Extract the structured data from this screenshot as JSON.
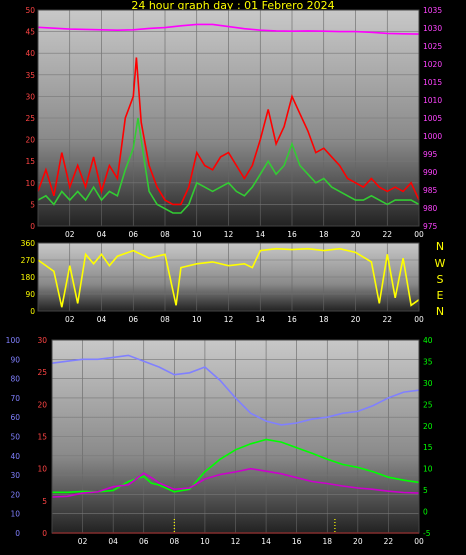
{
  "title": "24 hour graph day : 01 Febrero 2024",
  "compass": [
    "N",
    "W",
    "S",
    "E",
    "N"
  ],
  "chart_data": [
    {
      "type": "line",
      "x_ticks": [
        "02",
        "04",
        "06",
        "08",
        "10",
        "12",
        "14",
        "16",
        "18",
        "20",
        "22",
        "00"
      ],
      "y_left": {
        "range": [
          0,
          50
        ],
        "ticks": [
          0,
          5,
          10,
          15,
          20,
          25,
          30,
          35,
          40,
          45,
          50
        ]
      },
      "y_right": {
        "range": [
          975,
          1035
        ],
        "ticks": [
          975,
          980,
          985,
          990,
          995,
          1000,
          1005,
          1010,
          1015,
          1020,
          1025,
          1030,
          1035
        ]
      },
      "grid": true,
      "series": [
        {
          "color": "#ff00ff",
          "axis": "right",
          "points": [
            [
              0,
              1030.2
            ],
            [
              2,
              1029.7
            ],
            [
              4,
              1029.5
            ],
            [
              5,
              1029.4
            ],
            [
              6,
              1029.5
            ],
            [
              7,
              1029.9
            ],
            [
              8,
              1030.1
            ],
            [
              9,
              1030.6
            ],
            [
              10,
              1031.0
            ],
            [
              11,
              1031.0
            ],
            [
              12,
              1030.4
            ],
            [
              13,
              1029.8
            ],
            [
              14,
              1029.4
            ],
            [
              15,
              1029.2
            ],
            [
              16,
              1029.1
            ],
            [
              17,
              1029.2
            ],
            [
              18,
              1029.1
            ],
            [
              19,
              1029.0
            ],
            [
              20,
              1029.0
            ],
            [
              21,
              1028.8
            ],
            [
              22,
              1028.5
            ],
            [
              23,
              1028.4
            ],
            [
              24,
              1028.3
            ]
          ]
        },
        {
          "color": "#ff0000",
          "axis": "left",
          "points": [
            [
              0,
              8
            ],
            [
              0.5,
              13
            ],
            [
              1,
              7
            ],
            [
              1.5,
              17
            ],
            [
              2,
              9
            ],
            [
              2.5,
              14
            ],
            [
              3,
              9
            ],
            [
              3.5,
              16
            ],
            [
              4,
              8
            ],
            [
              4.5,
              14
            ],
            [
              5,
              11
            ],
            [
              5.5,
              25
            ],
            [
              6,
              30
            ],
            [
              6.2,
              39
            ],
            [
              6.5,
              24
            ],
            [
              7,
              14
            ],
            [
              7.5,
              9
            ],
            [
              8,
              6
            ],
            [
              8.5,
              5
            ],
            [
              9,
              5
            ],
            [
              9.5,
              9
            ],
            [
              10,
              17
            ],
            [
              10.5,
              14
            ],
            [
              11,
              13
            ],
            [
              11.5,
              16
            ],
            [
              12,
              17
            ],
            [
              12.5,
              14
            ],
            [
              13,
              11
            ],
            [
              13.5,
              14
            ],
            [
              14,
              20
            ],
            [
              14.5,
              27
            ],
            [
              15,
              19
            ],
            [
              15.5,
              23
            ],
            [
              16,
              30
            ],
            [
              16.5,
              26
            ],
            [
              17,
              22
            ],
            [
              17.5,
              17
            ],
            [
              18,
              18
            ],
            [
              18.5,
              16
            ],
            [
              19,
              14
            ],
            [
              19.5,
              11
            ],
            [
              20,
              10
            ],
            [
              20.5,
              9
            ],
            [
              21,
              11
            ],
            [
              21.5,
              9
            ],
            [
              22,
              8
            ],
            [
              22.5,
              9
            ],
            [
              23,
              8
            ],
            [
              23.5,
              10
            ],
            [
              24,
              6
            ]
          ]
        },
        {
          "color": "#33cc33",
          "axis": "left",
          "points": [
            [
              0,
              6
            ],
            [
              0.5,
              7
            ],
            [
              1,
              5
            ],
            [
              1.5,
              8
            ],
            [
              2,
              6
            ],
            [
              2.5,
              8
            ],
            [
              3,
              6
            ],
            [
              3.5,
              9
            ],
            [
              4,
              6
            ],
            [
              4.5,
              8
            ],
            [
              5,
              7
            ],
            [
              5.5,
              13
            ],
            [
              6,
              18
            ],
            [
              6.3,
              25
            ],
            [
              6.7,
              15
            ],
            [
              7,
              8
            ],
            [
              7.5,
              5
            ],
            [
              8,
              4
            ],
            [
              8.5,
              3
            ],
            [
              9,
              3
            ],
            [
              9.5,
              5
            ],
            [
              10,
              10
            ],
            [
              10.5,
              9
            ],
            [
              11,
              8
            ],
            [
              11.5,
              9
            ],
            [
              12,
              10
            ],
            [
              12.5,
              8
            ],
            [
              13,
              7
            ],
            [
              13.5,
              9
            ],
            [
              14,
              12
            ],
            [
              14.5,
              15
            ],
            [
              15,
              12
            ],
            [
              15.5,
              14
            ],
            [
              16,
              19
            ],
            [
              16.5,
              14
            ],
            [
              17,
              12
            ],
            [
              17.5,
              10
            ],
            [
              18,
              11
            ],
            [
              18.5,
              9
            ],
            [
              19,
              8
            ],
            [
              19.5,
              7
            ],
            [
              20,
              6
            ],
            [
              20.5,
              6
            ],
            [
              21,
              7
            ],
            [
              21.5,
              6
            ],
            [
              22,
              5
            ],
            [
              22.5,
              6
            ],
            [
              23,
              6
            ],
            [
              23.5,
              6
            ],
            [
              24,
              5
            ]
          ]
        }
      ]
    },
    {
      "type": "line",
      "x_ticks": [
        "02",
        "04",
        "06",
        "08",
        "10",
        "12",
        "14",
        "16",
        "18",
        "20",
        "22",
        "00"
      ],
      "y_left": {
        "range": [
          0,
          360
        ],
        "ticks": [
          0,
          90,
          180,
          270,
          360
        ]
      },
      "grid": true,
      "series": [
        {
          "color": "#ffff00",
          "points": [
            [
              0,
              270
            ],
            [
              1,
              210
            ],
            [
              1.5,
              20
            ],
            [
              2,
              240
            ],
            [
              2.5,
              40
            ],
            [
              3,
              300
            ],
            [
              3.5,
              250
            ],
            [
              4,
              300
            ],
            [
              4.5,
              240
            ],
            [
              5,
              290
            ],
            [
              6,
              320
            ],
            [
              7,
              280
            ],
            [
              8,
              300
            ],
            [
              8.7,
              30
            ],
            [
              9,
              230
            ],
            [
              10,
              250
            ],
            [
              11,
              260
            ],
            [
              12,
              240
            ],
            [
              13,
              250
            ],
            [
              13.5,
              230
            ],
            [
              14,
              320
            ],
            [
              15,
              330
            ],
            [
              16,
              325
            ],
            [
              17,
              330
            ],
            [
              18,
              320
            ],
            [
              19,
              330
            ],
            [
              20,
              310
            ],
            [
              21,
              260
            ],
            [
              21.5,
              40
            ],
            [
              22,
              300
            ],
            [
              22.5,
              70
            ],
            [
              23,
              280
            ],
            [
              23.5,
              30
            ],
            [
              24,
              60
            ]
          ]
        }
      ]
    },
    {
      "type": "line",
      "x_ticks": [
        "02",
        "04",
        "06",
        "08",
        "10",
        "12",
        "14",
        "16",
        "18",
        "20",
        "22",
        "00"
      ],
      "y_left": {
        "range": [
          0,
          100
        ],
        "ticks": [
          0,
          10,
          20,
          30,
          40,
          50,
          60,
          70,
          80,
          90,
          100
        ]
      },
      "y_left2": {
        "range": [
          0,
          30
        ],
        "ticks": [
          0,
          5,
          10,
          15,
          20,
          25,
          30
        ]
      },
      "y_right": {
        "range": [
          -5,
          40
        ],
        "ticks": [
          -5,
          0,
          5,
          10,
          15,
          20,
          25,
          30,
          35,
          40
        ]
      },
      "grid": true,
      "series": [
        {
          "color": "#8080ff",
          "axis": "left",
          "points": [
            [
              0,
              88
            ],
            [
              1,
              89
            ],
            [
              2,
              90
            ],
            [
              3,
              90
            ],
            [
              4,
              91
            ],
            [
              5,
              92
            ],
            [
              6,
              89
            ],
            [
              7,
              86
            ],
            [
              8,
              82
            ],
            [
              9,
              83
            ],
            [
              10,
              86
            ],
            [
              11,
              79
            ],
            [
              12,
              70
            ],
            [
              13,
              62
            ],
            [
              14,
              58
            ],
            [
              15,
              56
            ],
            [
              16,
              57
            ],
            [
              17,
              59
            ],
            [
              18,
              60
            ],
            [
              19,
              62
            ],
            [
              20,
              63
            ],
            [
              21,
              66
            ],
            [
              22,
              70
            ],
            [
              23,
              73
            ],
            [
              24,
              74
            ]
          ]
        },
        {
          "color": "#00ff00",
          "axis": "right",
          "points": [
            [
              0,
              4.5
            ],
            [
              1,
              4.5
            ],
            [
              2,
              4.7
            ],
            [
              3,
              4.6
            ],
            [
              4,
              4.9
            ],
            [
              5,
              7.0
            ],
            [
              6,
              8.2
            ],
            [
              6.5,
              6.6
            ],
            [
              7,
              6.2
            ],
            [
              8,
              4.6
            ],
            [
              9,
              5.2
            ],
            [
              10,
              9.3
            ],
            [
              11,
              12.2
            ],
            [
              12,
              14.4
            ],
            [
              13,
              15.8
            ],
            [
              14,
              16.8
            ],
            [
              15,
              16.2
            ],
            [
              16,
              14.9
            ],
            [
              17,
              13.6
            ],
            [
              18,
              12.2
            ],
            [
              19,
              11.0
            ],
            [
              20,
              10.3
            ],
            [
              21,
              9.3
            ],
            [
              22,
              8.0
            ],
            [
              23,
              7.3
            ],
            [
              24,
              6.8
            ]
          ]
        },
        {
          "color": "#cc00cc",
          "axis": "left2",
          "points": [
            [
              0,
              5.6
            ],
            [
              1,
              5.7
            ],
            [
              2,
              6.2
            ],
            [
              3,
              6.4
            ],
            [
              4,
              7.2
            ],
            [
              5,
              7.5
            ],
            [
              6,
              9.3
            ],
            [
              6.5,
              8.6
            ],
            [
              7,
              7.8
            ],
            [
              8,
              6.8
            ],
            [
              9,
              7.0
            ],
            [
              10,
              8.4
            ],
            [
              11,
              9.1
            ],
            [
              12,
              9.5
            ],
            [
              13,
              10.0
            ],
            [
              14,
              9.6
            ],
            [
              15,
              9.2
            ],
            [
              16,
              8.6
            ],
            [
              17,
              8.0
            ],
            [
              18,
              7.7
            ],
            [
              19,
              7.3
            ],
            [
              20,
              7.0
            ],
            [
              21,
              6.8
            ],
            [
              22,
              6.5
            ],
            [
              23,
              6.3
            ],
            [
              24,
              6.2
            ]
          ]
        },
        {
          "color": "#ff0000",
          "axis": "left2",
          "points": [
            [
              0,
              0
            ],
            [
              24,
              0
            ]
          ]
        },
        {
          "color": "#ffff00",
          "axis": "left2",
          "dotted_markers_x": [
            8,
            18.5
          ]
        }
      ]
    }
  ]
}
